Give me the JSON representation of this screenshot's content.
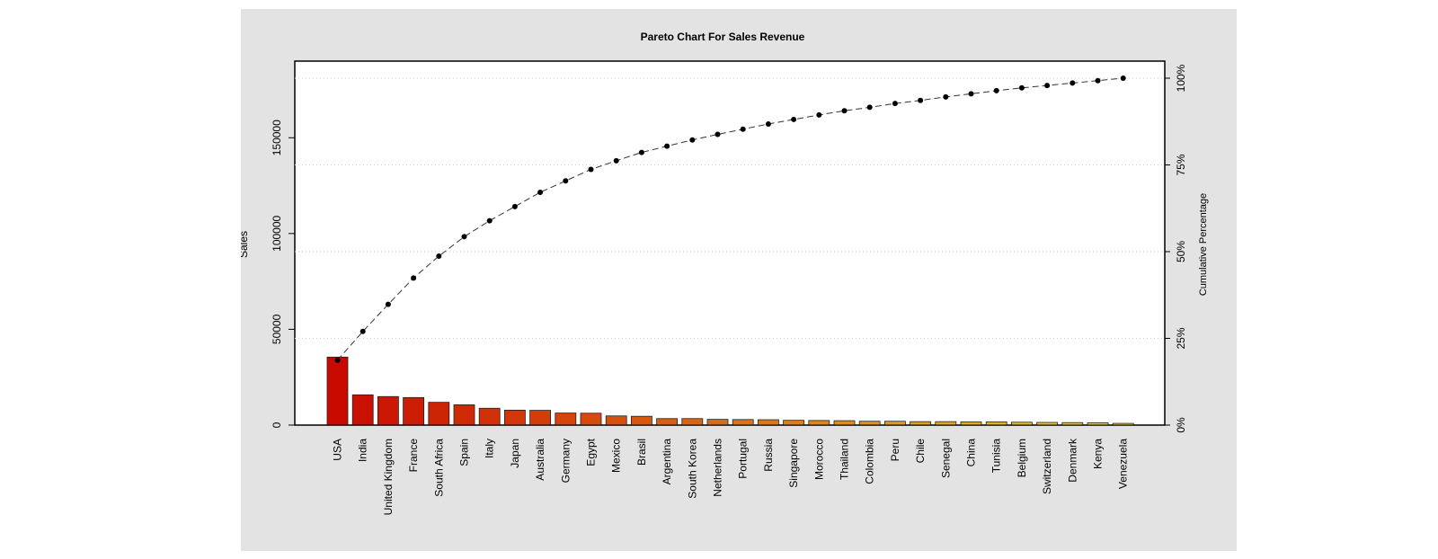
{
  "chart_data": {
    "type": "bar",
    "title": "Pareto Chart For Sales Revenue",
    "ylabel": "Sales",
    "y2label": "Cumulative Percentage",
    "ylim": [
      0,
      190000
    ],
    "y_ticks": [
      0,
      50000,
      100000,
      150000
    ],
    "y_tick_labels": [
      "0",
      "50000",
      "100000",
      "150000"
    ],
    "y2_ticks": [
      0,
      25,
      50,
      75,
      100
    ],
    "y2_tick_labels": [
      "0%",
      "25%",
      "50%",
      "75%",
      "100%"
    ],
    "grid": true,
    "categories": [
      "USA",
      "India",
      "United Kingdom",
      "France",
      "South Africa",
      "Spain",
      "Italy",
      "Japan",
      "Australia",
      "Germany",
      "Egypt",
      "Mexico",
      "Brasil",
      "Argentina",
      "South Korea",
      "Netherlands",
      "Portugal",
      "Russia",
      "Singapore",
      "Morocco",
      "Thailand",
      "Colombia",
      "Peru",
      "Chile",
      "Senegal",
      "China",
      "Tunisia",
      "Belgium",
      "Switzerland",
      "Denmark",
      "Kenya",
      "Venezuela"
    ],
    "series": [
      {
        "values": [
          35500,
          15800,
          14900,
          14400,
          11900,
          10600,
          8800,
          7800,
          7700,
          6300,
          6200,
          4800,
          4600,
          3400,
          3400,
          3000,
          2900,
          2800,
          2500,
          2400,
          2300,
          2000,
          2000,
          1800,
          1800,
          1700,
          1700,
          1500,
          1400,
          1300,
          1200,
          900
        ]
      },
      {
        "values": [
          18.7,
          27.0,
          34.8,
          42.4,
          48.7,
          54.3,
          58.9,
          63.0,
          67.1,
          70.4,
          73.7,
          76.2,
          78.6,
          80.4,
          82.2,
          83.8,
          85.3,
          86.8,
          88.1,
          89.4,
          90.6,
          91.6,
          92.7,
          93.6,
          94.6,
          95.5,
          96.4,
          97.2,
          97.9,
          98.6,
          99.3,
          100.0
        ]
      }
    ]
  }
}
